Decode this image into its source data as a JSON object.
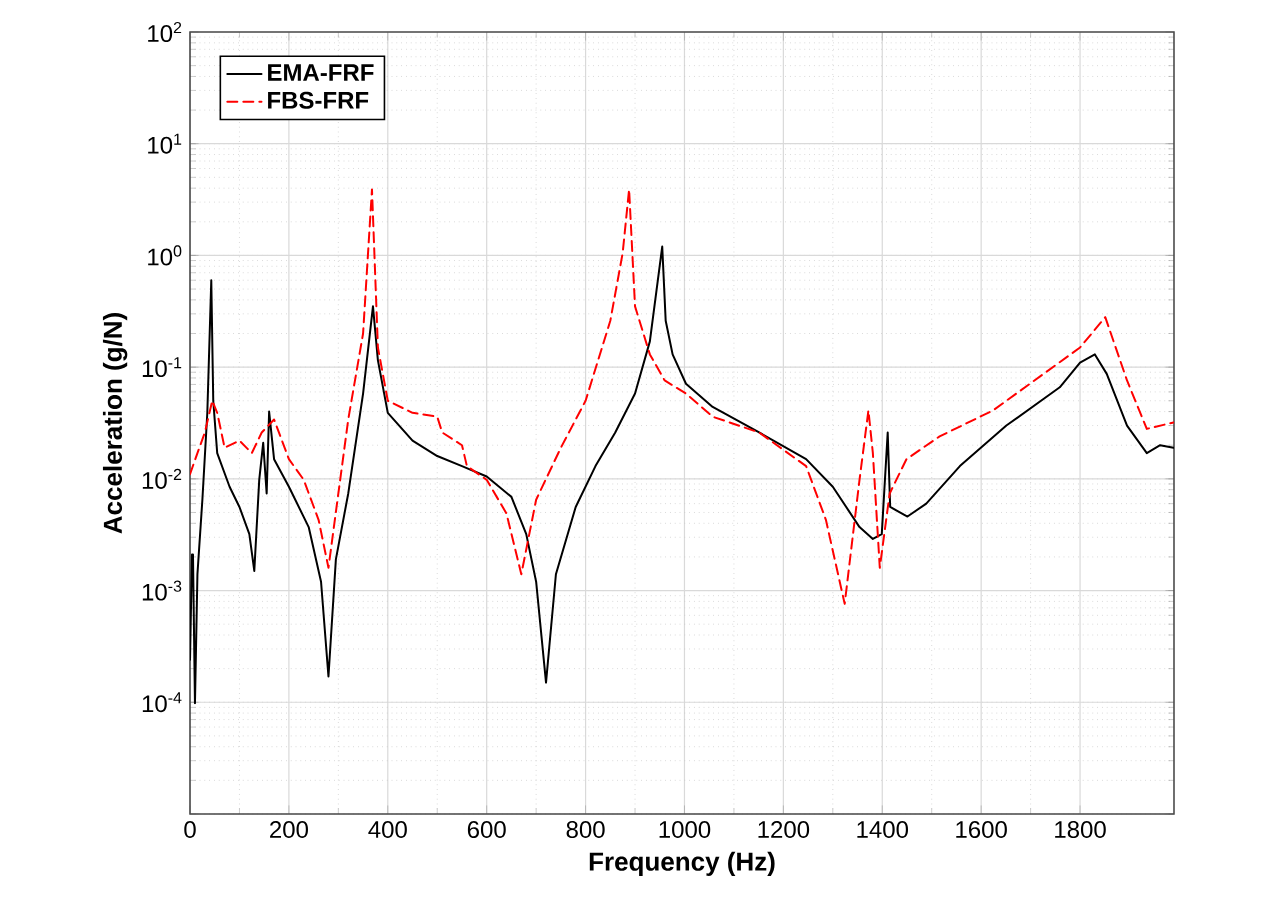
{
  "chart_data": {
    "type": "line",
    "xlabel": "Frequency (Hz)",
    "ylabel": "Acceleration (g/N)",
    "log": "y",
    "grid": true,
    "legend": "top left",
    "marker": "none",
    "xlim": [
      0,
      1990
    ],
    "xticks": [
      0,
      200,
      400,
      600,
      800,
      1000,
      1200,
      1400,
      1600,
      1800
    ],
    "ylim": [
      1e-05,
      100
    ],
    "yticks": [
      {
        "value": 1e-05,
        "label": null
      },
      {
        "value": 0.0001,
        "label": "10$^{-4}$"
      },
      {
        "value": 0.001,
        "label": "10$^{-3}$"
      },
      {
        "value": 0.01,
        "label": "10$^{-2}$"
      },
      {
        "value": 0.1,
        "label": "10$^{-1}$"
      },
      {
        "value": 1,
        "label": "10$^{0}$"
      },
      {
        "value": 10,
        "label": "10$^{1}$"
      },
      {
        "value": 100,
        "label": "10$^{2}$"
      }
    ],
    "series": [
      {
        "name": "EMA-FRF",
        "color": "#000000",
        "line_style": "solid",
        "x": [
          0,
          4,
          6,
          10,
          15,
          25,
          35,
          43,
          47,
          55,
          80,
          100,
          120,
          130,
          140,
          148,
          155,
          160,
          170,
          200,
          240,
          265,
          280,
          295,
          320,
          350,
          370,
          380,
          400,
          450,
          500,
          550,
          600,
          650,
          680,
          700,
          720,
          740,
          780,
          820,
          860,
          900,
          930,
          955,
          962,
          976,
          1003,
          1057,
          1151,
          1246,
          1300,
          1354,
          1381,
          1399,
          1411,
          1416,
          1451,
          1489,
          1557,
          1651,
          1759,
          1800,
          1830,
          1854,
          1895,
          1935,
          1962,
          1989
        ],
        "values": [
          0.00024,
          0.0021,
          0.0021,
          9.8e-05,
          0.0014,
          0.0065,
          0.039,
          0.6,
          0.05,
          0.017,
          0.0085,
          0.0056,
          0.0032,
          0.0015,
          0.0098,
          0.021,
          0.0074,
          0.04,
          0.015,
          0.0085,
          0.0037,
          0.0012,
          0.00017,
          0.0019,
          0.0074,
          0.058,
          0.35,
          0.115,
          0.039,
          0.022,
          0.016,
          0.013,
          0.0105,
          0.0069,
          0.0032,
          0.0012,
          0.00015,
          0.0014,
          0.0056,
          0.013,
          0.026,
          0.058,
          0.17,
          1.2,
          0.26,
          0.13,
          0.071,
          0.044,
          0.026,
          0.015,
          0.0085,
          0.0037,
          0.0029,
          0.0032,
          0.026,
          0.0056,
          0.0046,
          0.006,
          0.013,
          0.03,
          0.066,
          0.11,
          0.13,
          0.087,
          0.03,
          0.017,
          0.02,
          0.019
        ]
      },
      {
        "name": "FBS-FRF",
        "color": "#ff0000",
        "line_style": "dashed",
        "x": [
          0,
          15,
          30,
          45,
          55,
          70,
          100,
          125,
          145,
          170,
          200,
          230,
          260,
          280,
          300,
          320,
          350,
          368,
          380,
          400,
          450,
          500,
          510,
          550,
          560,
          600,
          640,
          670,
          700,
          750,
          800,
          850,
          875,
          888,
          900,
          930,
          960,
          1003,
          1057,
          1151,
          1246,
          1286,
          1324,
          1354,
          1372,
          1381,
          1395,
          1415,
          1449,
          1516,
          1624,
          1800,
          1851,
          1895,
          1935,
          1989
        ],
        "values": [
          0.011,
          0.017,
          0.026,
          0.05,
          0.039,
          0.019,
          0.022,
          0.017,
          0.026,
          0.034,
          0.015,
          0.0098,
          0.0043,
          0.0016,
          0.0074,
          0.034,
          0.2,
          3.9,
          0.15,
          0.05,
          0.039,
          0.036,
          0.026,
          0.02,
          0.013,
          0.0098,
          0.0049,
          0.0014,
          0.0065,
          0.019,
          0.05,
          0.26,
          1.05,
          3.9,
          0.35,
          0.13,
          0.076,
          0.058,
          0.036,
          0.026,
          0.013,
          0.0043,
          0.00076,
          0.0098,
          0.041,
          0.017,
          0.0016,
          0.0074,
          0.015,
          0.024,
          0.041,
          0.15,
          0.28,
          0.076,
          0.028,
          0.032
        ]
      }
    ]
  }
}
